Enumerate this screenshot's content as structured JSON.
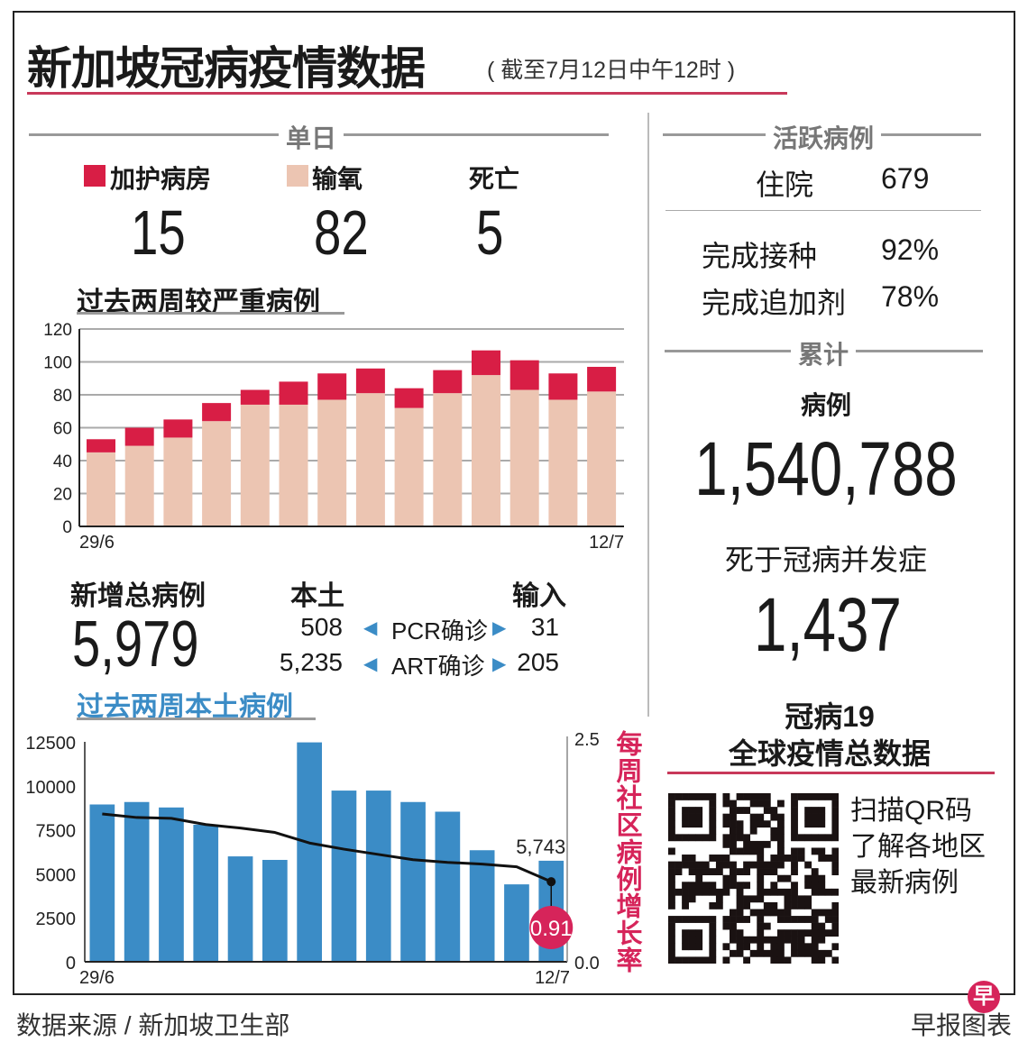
{
  "header": {
    "title": "新加坡冠病疫情数据",
    "subtitle": "( 截至7月12日中午12时 )"
  },
  "colors": {
    "icu": "#d81e45",
    "oxygen": "#ecc5b2",
    "local_bars": "#3b8cc6",
    "accent": "#d6245a",
    "rule": "#c8385a"
  },
  "daily": {
    "heading": "单日",
    "icu_label": "加护病房",
    "icu_value": "15",
    "oxygen_label": "输氧",
    "oxygen_value": "82",
    "deaths_label": "死亡",
    "deaths_value": "5"
  },
  "severe_chart_title": "过去两周较严重病例",
  "new_cases": {
    "label": "新增总病例",
    "total": "5,979",
    "local_label": "本土",
    "imported_label": "输入",
    "rows": [
      {
        "local": "508",
        "type": "PCR确诊",
        "imported": "31"
      },
      {
        "local": "5,235",
        "type": "ART确诊",
        "imported": "205"
      }
    ]
  },
  "local_chart_title": "过去两周本土病例",
  "active": {
    "heading": "活跃病例",
    "hospitalised_label": "住院",
    "hospitalised_value": "679",
    "vaccinated_label": "完成接种",
    "vaccinated_value": "92%",
    "booster_label": "完成追加剂",
    "booster_value": "78%"
  },
  "cumulative": {
    "heading": "累计",
    "cases_label": "病例",
    "cases_value": "1,540,788",
    "deaths_label": "死于冠病并发症",
    "deaths_value": "1,437"
  },
  "global": {
    "title_line1": "冠病19",
    "title_line2": "全球疫情总数据",
    "qr_line1": "扫描QR码",
    "qr_line2": "了解各地区",
    "qr_line3": "最新病例"
  },
  "footer": {
    "source": "数据来源 / 新加坡卫生部",
    "credit": "早报图表",
    "logo_char": "早"
  },
  "chart_data": [
    {
      "type": "bar",
      "stacked": true,
      "title": "过去两周较严重病例",
      "x_tick_labels": [
        "29/6",
        "12/7"
      ],
      "categories_count": 14,
      "series": [
        {
          "name": "输氧",
          "values": [
            45,
            49,
            54,
            64,
            74,
            74,
            77,
            81,
            72,
            81,
            92,
            83,
            77,
            82
          ]
        },
        {
          "name": "加护病房",
          "values": [
            8,
            11,
            11,
            11,
            9,
            14,
            16,
            15,
            12,
            14,
            15,
            18,
            16,
            15
          ]
        }
      ],
      "ylim": [
        0,
        120
      ],
      "y_ticks": [
        0,
        20,
        40,
        60,
        80,
        100,
        120
      ],
      "grid": true
    },
    {
      "type": "bar+line",
      "title": "过去两周本土病例",
      "x_tick_labels": [
        "29/6",
        "12/7"
      ],
      "bars": [
        8940,
        9080,
        8770,
        7790,
        5990,
        5790,
        12470,
        9730,
        9730,
        9080,
        8530,
        6340,
        4400,
        5743
      ],
      "bar_label": "5,743",
      "ylim": [
        0,
        12500
      ],
      "y_ticks": [
        0,
        2500,
        5000,
        7500,
        10000,
        12500
      ],
      "line": {
        "name": "每周社区病例增长率",
        "values": [
          1.68,
          1.64,
          1.63,
          1.56,
          1.52,
          1.47,
          1.35,
          1.28,
          1.22,
          1.16,
          1.13,
          1.11,
          1.08,
          0.91
        ],
        "last_label": "0.91"
      },
      "y2lim": [
        0.0,
        2.5
      ],
      "y2_tick_labels": [
        "0.0",
        "2.5"
      ],
      "grid": false
    }
  ]
}
